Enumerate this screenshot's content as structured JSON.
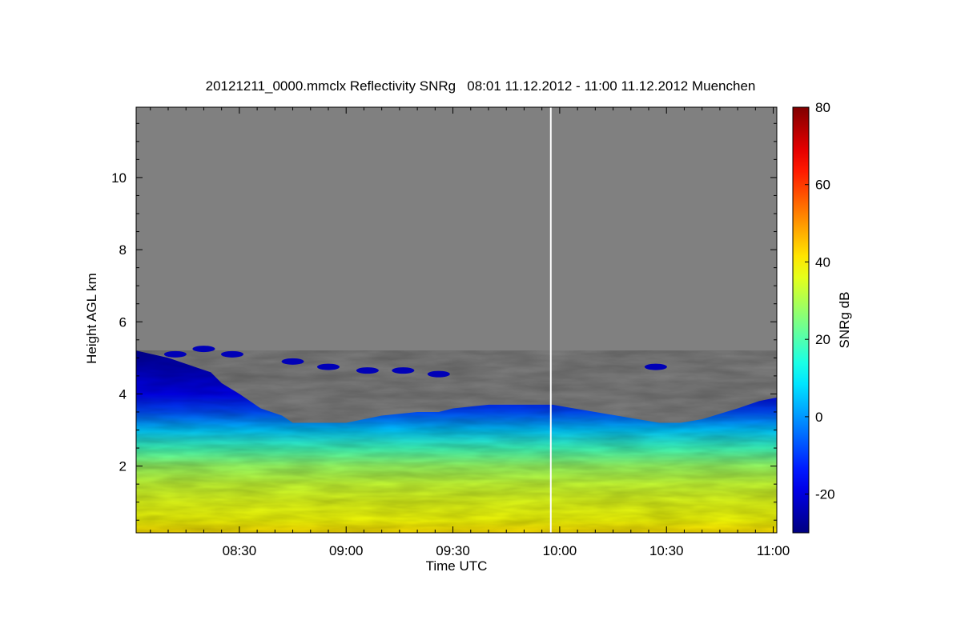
{
  "chart_data": {
    "type": "heatmap",
    "title": "20121211_0000.mmclx Reflectivity SNRg   08:01 11.12.2012 - 11:00 11.12.2012 Muenchen",
    "xlabel": "Time UTC",
    "ylabel": "Height AGL km",
    "colorbar_label": "SNRg dB",
    "x_ticks": [
      "08:30",
      "09:00",
      "09:30",
      "10:00",
      "10:30",
      "11:00"
    ],
    "x_tick_minutes": [
      510,
      540,
      570,
      600,
      630,
      660
    ],
    "xlim_minutes": [
      481,
      661
    ],
    "y_ticks": [
      2,
      4,
      6,
      8,
      10
    ],
    "ylim": [
      0.15,
      11.95
    ],
    "colorbar_ticks": [
      -20,
      0,
      20,
      40,
      60,
      80
    ],
    "colorbar_range": [
      -30,
      80
    ],
    "colormap": "jet",
    "no_signal_color": "#808080",
    "data_gap_minute": 597.5,
    "cloud_top_km": {
      "minutes": [
        481,
        490,
        496,
        502,
        505,
        510,
        516,
        522,
        525,
        530,
        540,
        550,
        560,
        566,
        570,
        580,
        590,
        596,
        598,
        604,
        610,
        616,
        622,
        628,
        634,
        640,
        650,
        656,
        661
      ],
      "heights": [
        5.2,
        5.0,
        4.8,
        4.6,
        4.3,
        4.0,
        3.6,
        3.4,
        3.2,
        3.2,
        3.2,
        3.4,
        3.5,
        3.5,
        3.6,
        3.7,
        3.7,
        3.7,
        3.7,
        3.6,
        3.5,
        3.4,
        3.3,
        3.2,
        3.2,
        3.3,
        3.6,
        3.8,
        3.9
      ]
    },
    "snr_profile": {
      "heights_km": [
        0.15,
        0.5,
        1.0,
        1.5,
        2.0,
        2.5,
        3.0,
        3.5,
        4.0,
        5.0
      ],
      "snr_db": [
        42,
        38,
        36,
        33,
        28,
        18,
        5,
        -8,
        -18,
        -26
      ]
    },
    "upper_cloud_patches": [
      {
        "minute": 492,
        "height_km": 5.1
      },
      {
        "minute": 500,
        "height_km": 5.25
      },
      {
        "minute": 508,
        "height_km": 5.1
      },
      {
        "minute": 525,
        "height_km": 4.9
      },
      {
        "minute": 535,
        "height_km": 4.75
      },
      {
        "minute": 546,
        "height_km": 4.65
      },
      {
        "minute": 556,
        "height_km": 4.65
      },
      {
        "minute": 566,
        "height_km": 4.55
      },
      {
        "minute": 627,
        "height_km": 4.75
      }
    ]
  }
}
